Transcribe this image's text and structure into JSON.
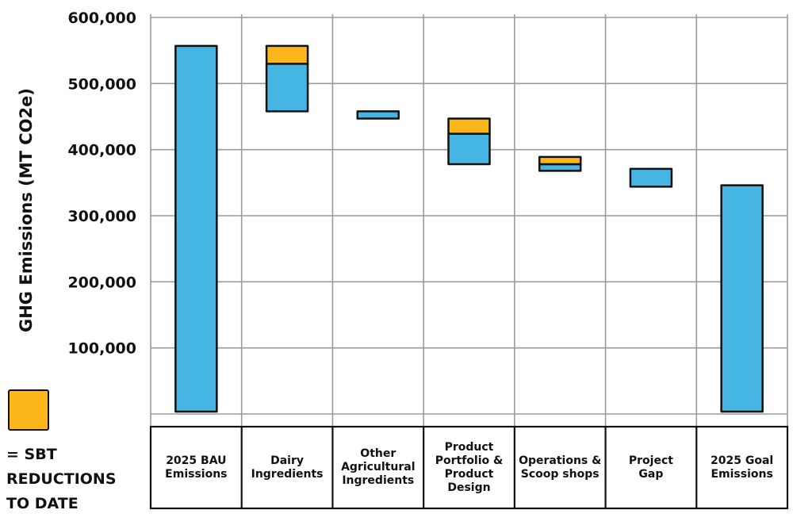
{
  "chart_data": {
    "type": "bar",
    "subtype": "waterfall",
    "ylabel": "GHG Emissions (MT CO2e)",
    "ylim": [
      0,
      600000
    ],
    "yticks": [
      {
        "value": 100000,
        "label": "100,000"
      },
      {
        "value": 200000,
        "label": "200,000"
      },
      {
        "value": 300000,
        "label": "300,000"
      },
      {
        "value": 400000,
        "label": "400,000"
      },
      {
        "value": 500000,
        "label": "500,000"
      },
      {
        "value": 600000,
        "label": "600,000"
      }
    ],
    "grid": true,
    "colors": {
      "blue": "#45b5e4",
      "orange": "#fdb71a",
      "outline": "#111111"
    },
    "categories": [
      "2025 BAU\nEmissions",
      "Dairy\nIngredients",
      "Other\nAgricultural\nIngredients",
      "Product\nPortfolio &\nProduct\nDesign",
      "Operations &\nScoop shops",
      "Project\nGap",
      "2025 Goal\nEmissions"
    ],
    "bars": [
      {
        "segments": [
          {
            "from": 0,
            "to": 557000,
            "color": "blue"
          }
        ]
      },
      {
        "segments": [
          {
            "from": 458000,
            "to": 530000,
            "color": "blue"
          },
          {
            "from": 530000,
            "to": 557000,
            "color": "orange"
          }
        ]
      },
      {
        "segments": [
          {
            "from": 447000,
            "to": 458000,
            "color": "blue"
          }
        ]
      },
      {
        "segments": [
          {
            "from": 378000,
            "to": 424000,
            "color": "blue"
          },
          {
            "from": 424000,
            "to": 447000,
            "color": "orange"
          }
        ]
      },
      {
        "segments": [
          {
            "from": 368000,
            "to": 378000,
            "color": "blue"
          },
          {
            "from": 378000,
            "to": 389000,
            "color": "orange"
          }
        ]
      },
      {
        "segments": [
          {
            "from": 344000,
            "to": 371000,
            "color": "blue"
          }
        ]
      },
      {
        "segments": [
          {
            "from": 0,
            "to": 346000,
            "color": "blue"
          }
        ]
      }
    ]
  },
  "legend": {
    "swatch_color": "#fdb71a",
    "text": "= SBT\nREDUCTIONS\nTO DATE"
  }
}
